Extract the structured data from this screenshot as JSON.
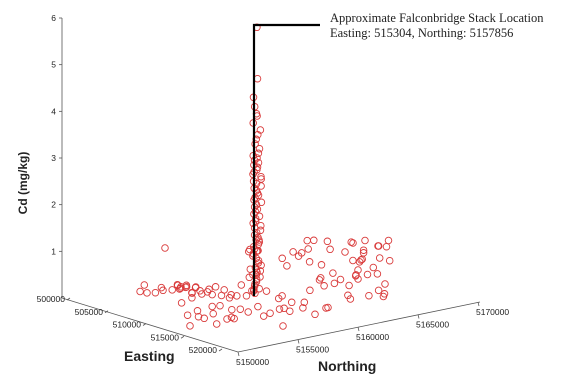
{
  "chart_data": {
    "type": "scatter",
    "title": "",
    "zlabel": "Cd (mg/kg)",
    "xlabel": "Easting",
    "ylabel": "Northing",
    "zlim": [
      0,
      6
    ],
    "z_ticks": [
      "1",
      "2",
      "3",
      "4",
      "5",
      "6"
    ],
    "easting_ticks": [
      "500000",
      "505000",
      "510000",
      "515000",
      "520000"
    ],
    "northing_ticks": [
      "5150000",
      "5155000",
      "5160000",
      "5165000",
      "5170000"
    ],
    "marker_color": "#d93a3a",
    "annotation": {
      "line1": "Approximate Falconbridge Stack Location",
      "line2": "Easting: 515304, Northing: 5157856"
    },
    "stack_location": {
      "easting": 515304,
      "northing": 5157856
    },
    "points": [
      {
        "z": 5.8
      },
      {
        "z": 4.7
      },
      {
        "z": 4.3
      },
      {
        "z": 4.1
      },
      {
        "z": 3.95
      },
      {
        "z": 3.9
      },
      {
        "z": 3.75
      },
      {
        "z": 3.6
      },
      {
        "z": 3.5
      },
      {
        "z": 3.4
      },
      {
        "z": 3.3
      },
      {
        "z": 3.2
      },
      {
        "z": 3.1
      },
      {
        "z": 3.05
      },
      {
        "z": 3.0
      },
      {
        "z": 2.95
      },
      {
        "z": 2.9
      },
      {
        "z": 2.85
      },
      {
        "z": 2.8
      },
      {
        "z": 2.75
      },
      {
        "z": 2.7
      },
      {
        "z": 2.65
      },
      {
        "z": 2.6
      },
      {
        "z": 2.55
      },
      {
        "z": 2.5
      },
      {
        "z": 2.45
      },
      {
        "z": 2.4
      },
      {
        "z": 2.35
      },
      {
        "z": 2.3
      },
      {
        "z": 2.25
      },
      {
        "z": 2.2
      },
      {
        "z": 2.15
      },
      {
        "z": 2.1
      },
      {
        "z": 2.05
      },
      {
        "z": 2.0
      },
      {
        "z": 1.95
      },
      {
        "z": 1.9
      },
      {
        "z": 1.85
      },
      {
        "z": 1.8
      },
      {
        "z": 1.75
      },
      {
        "z": 1.7
      },
      {
        "z": 1.65
      },
      {
        "z": 1.6
      },
      {
        "z": 1.55
      },
      {
        "z": 1.5
      },
      {
        "z": 1.45
      },
      {
        "z": 1.4
      },
      {
        "z": 1.35
      },
      {
        "z": 1.3
      },
      {
        "z": 1.25
      },
      {
        "z": 1.2
      },
      {
        "z": 1.15
      },
      {
        "z": 1.1
      },
      {
        "z": 1.05
      },
      {
        "z": 1.0
      },
      {
        "z": 0.95
      },
      {
        "z": 0.9
      },
      {
        "z": 0.85
      },
      {
        "z": 0.8
      },
      {
        "z": 0.75
      },
      {
        "z": 0.7
      },
      {
        "z": 0.65
      },
      {
        "z": 0.6
      },
      {
        "z": 0.55
      },
      {
        "z": 0.5
      },
      {
        "z": 0.45
      },
      {
        "z": 0.4
      },
      {
        "z": 0.35
      },
      {
        "z": 0.3
      },
      {
        "z": 0.25
      },
      {
        "z": 0.2
      },
      {
        "z": 0.15
      },
      {
        "z": 0.1
      }
    ]
  }
}
